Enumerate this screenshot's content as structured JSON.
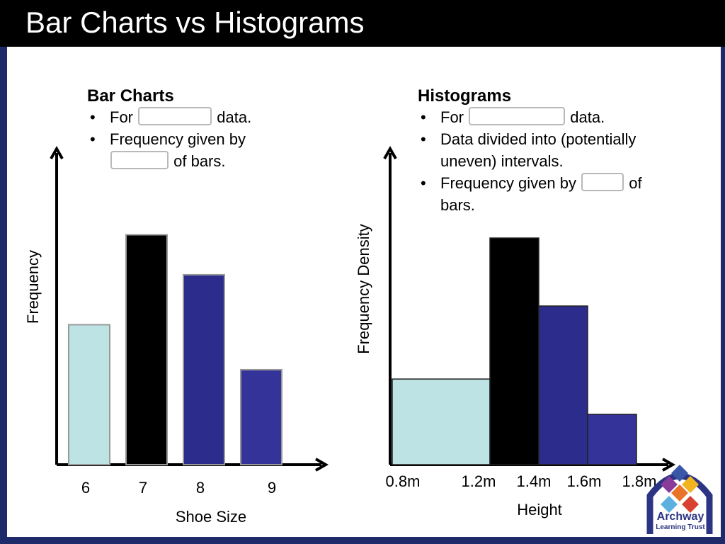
{
  "header": {
    "title": "Bar Charts vs Histograms"
  },
  "bar_panel": {
    "heading": "Bar Charts",
    "b1_pre": "For",
    "b1_post": "data.",
    "b2_line1": "Frequency given by",
    "b2_post": "of bars."
  },
  "hist_panel": {
    "heading": "Histograms",
    "b1_pre": "For",
    "b1_post": "data.",
    "b2": "Data divided into (potentially uneven) intervals.",
    "b3_pre": "Frequency given by",
    "b3_post": "of bars."
  },
  "chart_data": [
    {
      "type": "bar",
      "categories": [
        "6",
        "7",
        "8",
        "9"
      ],
      "values": [
        5.6,
        9.2,
        7.6,
        3.8
      ],
      "ylim": [
        0,
        12.7
      ],
      "colors": [
        "#bde3e5",
        "#000000",
        "#2c2c8c",
        "#333399"
      ],
      "xlabel": "Shoe Size",
      "ylabel": "Frequency"
    },
    {
      "type": "bar",
      "edges": [
        0.8,
        1.2,
        1.4,
        1.6,
        1.8
      ],
      "tick_labels": [
        "0.8m",
        "1.2m",
        "1.4m",
        "1.6m",
        "1.8m"
      ],
      "values": [
        3.4,
        9.0,
        6.3,
        2.0
      ],
      "ylim": [
        0,
        12.6
      ],
      "colors": [
        "#bde3e5",
        "#000000",
        "#2c2c8c",
        "#333399"
      ],
      "xlabel": "Height",
      "ylabel": "Frequency Density"
    }
  ],
  "logo": {
    "name": "Archway",
    "sub": "Learning Trust"
  }
}
